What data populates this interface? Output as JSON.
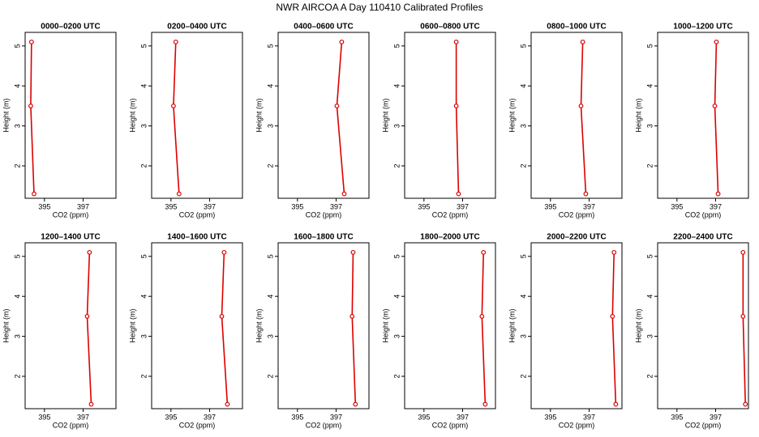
{
  "title": "NWR AIRCOA A  Day 110410  Calibrated Profiles",
  "chart_data": [
    {
      "type": "line",
      "title": "0000–0200 UTC",
      "xlabel": "CO2 (ppm)",
      "ylabel": "Height (m)",
      "xlim": [
        394,
        398.7
      ],
      "xticks": [
        395,
        397
      ],
      "ylim": [
        1.19,
        5.34
      ],
      "yticks": [
        2,
        3,
        4,
        5
      ],
      "series": [
        {
          "color": "#dd0000",
          "x": [
            394.33,
            394.29,
            394.46
          ],
          "values": [
            5.1,
            3.5,
            1.3
          ]
        }
      ]
    },
    {
      "type": "line",
      "title": "0200–0400 UTC",
      "xlabel": "CO2 (ppm)",
      "ylabel": "Height (m)",
      "xlim": [
        394,
        398.7
      ],
      "xticks": [
        395,
        397
      ],
      "ylim": [
        1.19,
        5.34
      ],
      "yticks": [
        2,
        3,
        4,
        5
      ],
      "series": [
        {
          "color": "#dd0000",
          "x": [
            395.25,
            395.13,
            395.42
          ],
          "values": [
            5.1,
            3.5,
            1.3
          ]
        }
      ]
    },
    {
      "type": "line",
      "title": "0400–0600 UTC",
      "xlabel": "CO2 (ppm)",
      "ylabel": "Height (m)",
      "xlim": [
        394,
        398.7
      ],
      "xticks": [
        395,
        397
      ],
      "ylim": [
        1.19,
        5.34
      ],
      "yticks": [
        2,
        3,
        4,
        5
      ],
      "series": [
        {
          "color": "#dd0000",
          "x": [
            397.29,
            397.04,
            397.42
          ],
          "values": [
            5.1,
            3.5,
            1.3
          ]
        }
      ]
    },
    {
      "type": "line",
      "title": "0600–0800 UTC",
      "xlabel": "CO2 (ppm)",
      "ylabel": "Height (m)",
      "xlim": [
        394,
        398.7
      ],
      "xticks": [
        395,
        397
      ],
      "ylim": [
        1.19,
        5.34
      ],
      "yticks": [
        2,
        3,
        4,
        5
      ],
      "series": [
        {
          "color": "#dd0000",
          "x": [
            396.67,
            396.67,
            396.79
          ],
          "values": [
            5.1,
            3.5,
            1.3
          ]
        }
      ]
    },
    {
      "type": "line",
      "title": "0800–1000 UTC",
      "xlabel": "CO2 (ppm)",
      "ylabel": "Height (m)",
      "xlim": [
        394,
        398.7
      ],
      "xticks": [
        395,
        397
      ],
      "ylim": [
        1.19,
        5.34
      ],
      "yticks": [
        2,
        3,
        4,
        5
      ],
      "series": [
        {
          "color": "#dd0000",
          "x": [
            396.67,
            396.58,
            396.83
          ],
          "values": [
            5.1,
            3.5,
            1.3
          ]
        }
      ]
    },
    {
      "type": "line",
      "title": "1000–1200 UTC",
      "xlabel": "CO2 (ppm)",
      "ylabel": "Height (m)",
      "xlim": [
        394,
        398.7
      ],
      "xticks": [
        395,
        397
      ],
      "ylim": [
        1.19,
        5.34
      ],
      "yticks": [
        2,
        3,
        4,
        5
      ],
      "series": [
        {
          "color": "#dd0000",
          "x": [
            397.04,
            396.96,
            397.13
          ],
          "values": [
            5.1,
            3.5,
            1.3
          ]
        }
      ]
    },
    {
      "type": "line",
      "title": "1200–1400 UTC",
      "xlabel": "CO2 (ppm)",
      "ylabel": "Height (m)",
      "xlim": [
        394,
        398.7
      ],
      "xticks": [
        395,
        397
      ],
      "ylim": [
        1.19,
        5.34
      ],
      "yticks": [
        2,
        3,
        4,
        5
      ],
      "series": [
        {
          "color": "#dd0000",
          "x": [
            397.33,
            397.21,
            397.42
          ],
          "values": [
            5.1,
            3.5,
            1.3
          ]
        }
      ]
    },
    {
      "type": "line",
      "title": "1400–1600 UTC",
      "xlabel": "CO2 (ppm)",
      "ylabel": "Height (m)",
      "xlim": [
        394,
        398.7
      ],
      "xticks": [
        395,
        397
      ],
      "ylim": [
        1.19,
        5.34
      ],
      "yticks": [
        2,
        3,
        4,
        5
      ],
      "series": [
        {
          "color": "#dd0000",
          "x": [
            397.75,
            397.63,
            397.92
          ],
          "values": [
            5.1,
            3.5,
            1.3
          ]
        }
      ]
    },
    {
      "type": "line",
      "title": "1600–1800 UTC",
      "xlabel": "CO2 (ppm)",
      "ylabel": "Height (m)",
      "xlim": [
        394,
        398.7
      ],
      "xticks": [
        395,
        397
      ],
      "ylim": [
        1.19,
        5.34
      ],
      "yticks": [
        2,
        3,
        4,
        5
      ],
      "series": [
        {
          "color": "#dd0000",
          "x": [
            397.88,
            397.83,
            398.0
          ],
          "values": [
            5.1,
            3.5,
            1.3
          ]
        }
      ]
    },
    {
      "type": "line",
      "title": "1800–2000 UTC",
      "xlabel": "CO2 (ppm)",
      "ylabel": "Height (m)",
      "xlim": [
        394,
        398.7
      ],
      "xticks": [
        395,
        397
      ],
      "ylim": [
        1.19,
        5.34
      ],
      "yticks": [
        2,
        3,
        4,
        5
      ],
      "series": [
        {
          "color": "#dd0000",
          "x": [
            398.08,
            398.0,
            398.17
          ],
          "values": [
            5.1,
            3.5,
            1.3
          ]
        }
      ]
    },
    {
      "type": "line",
      "title": "2000–2200 UTC",
      "xlabel": "CO2 (ppm)",
      "ylabel": "Height (m)",
      "xlim": [
        394,
        398.7
      ],
      "xticks": [
        395,
        397
      ],
      "ylim": [
        1.19,
        5.34
      ],
      "yticks": [
        2,
        3,
        4,
        5
      ],
      "series": [
        {
          "color": "#dd0000",
          "x": [
            398.29,
            398.21,
            398.38
          ],
          "values": [
            5.1,
            3.5,
            1.3
          ]
        }
      ]
    },
    {
      "type": "line",
      "title": "2200–2400 UTC",
      "xlabel": "CO2 (ppm)",
      "ylabel": "Height (m)",
      "xlim": [
        394,
        398.7
      ],
      "xticks": [
        395,
        397
      ],
      "ylim": [
        1.19,
        5.34
      ],
      "yticks": [
        2,
        3,
        4,
        5
      ],
      "series": [
        {
          "color": "#dd0000",
          "x": [
            398.42,
            398.42,
            398.54
          ],
          "values": [
            5.1,
            3.5,
            1.3
          ]
        }
      ]
    }
  ]
}
